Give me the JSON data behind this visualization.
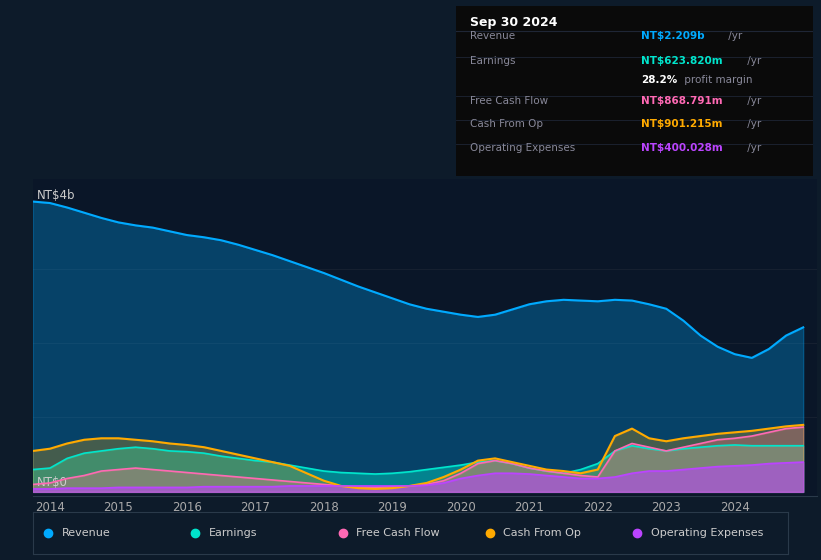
{
  "bg_color": "#0d1b2a",
  "plot_bg_color": "#0a1628",
  "colors": {
    "revenue": "#00aaff",
    "earnings": "#00e5cc",
    "free_cash_flow": "#ff69b4",
    "cash_from_op": "#ffaa00",
    "operating_expenses": "#bb44ff"
  },
  "ylabel_top": "NT$4b",
  "ylabel_bottom": "NT$0",
  "info_box": {
    "date": "Sep 30 2024",
    "revenue_label": "Revenue",
    "revenue_val": "NT$2.209b",
    "earnings_label": "Earnings",
    "earnings_val": "NT$623.820m",
    "profit_margin": "28.2%",
    "fcf_label": "Free Cash Flow",
    "fcf_val": "NT$868.791m",
    "cfo_label": "Cash From Op",
    "cfo_val": "NT$901.215m",
    "opex_label": "Operating Expenses",
    "opex_val": "NT$400.028m"
  },
  "legend": [
    "Revenue",
    "Earnings",
    "Free Cash Flow",
    "Cash From Op",
    "Operating Expenses"
  ],
  "x_pts": [
    2013.75,
    2014.0,
    2014.25,
    2014.5,
    2014.75,
    2015.0,
    2015.25,
    2015.5,
    2015.75,
    2016.0,
    2016.25,
    2016.5,
    2016.75,
    2017.0,
    2017.25,
    2017.5,
    2017.75,
    2018.0,
    2018.25,
    2018.5,
    2018.75,
    2019.0,
    2019.25,
    2019.5,
    2019.75,
    2020.0,
    2020.25,
    2020.5,
    2020.75,
    2021.0,
    2021.25,
    2021.5,
    2021.75,
    2022.0,
    2022.25,
    2022.5,
    2022.75,
    2023.0,
    2023.25,
    2023.5,
    2023.75,
    2024.0,
    2024.25,
    2024.5,
    2024.75,
    2025.0
  ],
  "revenue": [
    3.9,
    3.88,
    3.82,
    3.75,
    3.68,
    3.62,
    3.58,
    3.55,
    3.5,
    3.45,
    3.42,
    3.38,
    3.32,
    3.25,
    3.18,
    3.1,
    3.02,
    2.94,
    2.85,
    2.76,
    2.68,
    2.6,
    2.52,
    2.46,
    2.42,
    2.38,
    2.35,
    2.38,
    2.45,
    2.52,
    2.56,
    2.58,
    2.57,
    2.56,
    2.58,
    2.57,
    2.52,
    2.46,
    2.3,
    2.1,
    1.95,
    1.85,
    1.8,
    1.92,
    2.1,
    2.21
  ],
  "earnings": [
    0.3,
    0.32,
    0.45,
    0.52,
    0.55,
    0.58,
    0.6,
    0.58,
    0.55,
    0.54,
    0.52,
    0.48,
    0.45,
    0.42,
    0.4,
    0.36,
    0.32,
    0.28,
    0.26,
    0.25,
    0.24,
    0.25,
    0.27,
    0.3,
    0.33,
    0.36,
    0.4,
    0.42,
    0.38,
    0.32,
    0.28,
    0.25,
    0.3,
    0.38,
    0.55,
    0.62,
    0.58,
    0.55,
    0.58,
    0.6,
    0.62,
    0.63,
    0.62,
    0.62,
    0.62,
    0.62
  ],
  "free_cash_flow": [
    0.1,
    0.12,
    0.18,
    0.22,
    0.28,
    0.3,
    0.32,
    0.3,
    0.28,
    0.26,
    0.24,
    0.22,
    0.2,
    0.18,
    0.16,
    0.14,
    0.12,
    0.1,
    0.08,
    0.06,
    0.06,
    0.07,
    0.08,
    0.1,
    0.15,
    0.25,
    0.38,
    0.42,
    0.38,
    0.32,
    0.28,
    0.25,
    0.22,
    0.2,
    0.55,
    0.65,
    0.6,
    0.55,
    0.6,
    0.65,
    0.7,
    0.72,
    0.75,
    0.8,
    0.85,
    0.87
  ],
  "cash_from_op": [
    0.55,
    0.58,
    0.65,
    0.7,
    0.72,
    0.72,
    0.7,
    0.68,
    0.65,
    0.63,
    0.6,
    0.55,
    0.5,
    0.45,
    0.4,
    0.35,
    0.25,
    0.15,
    0.08,
    0.05,
    0.04,
    0.05,
    0.08,
    0.12,
    0.2,
    0.3,
    0.42,
    0.45,
    0.4,
    0.35,
    0.3,
    0.28,
    0.25,
    0.3,
    0.75,
    0.85,
    0.72,
    0.68,
    0.72,
    0.75,
    0.78,
    0.8,
    0.82,
    0.85,
    0.88,
    0.9
  ],
  "operating_expenses": [
    0.04,
    0.04,
    0.05,
    0.05,
    0.05,
    0.06,
    0.06,
    0.06,
    0.06,
    0.06,
    0.07,
    0.07,
    0.07,
    0.07,
    0.07,
    0.08,
    0.08,
    0.08,
    0.08,
    0.08,
    0.08,
    0.08,
    0.08,
    0.09,
    0.12,
    0.18,
    0.22,
    0.25,
    0.25,
    0.24,
    0.22,
    0.2,
    0.18,
    0.18,
    0.2,
    0.25,
    0.28,
    0.28,
    0.3,
    0.32,
    0.34,
    0.35,
    0.36,
    0.38,
    0.39,
    0.4
  ]
}
